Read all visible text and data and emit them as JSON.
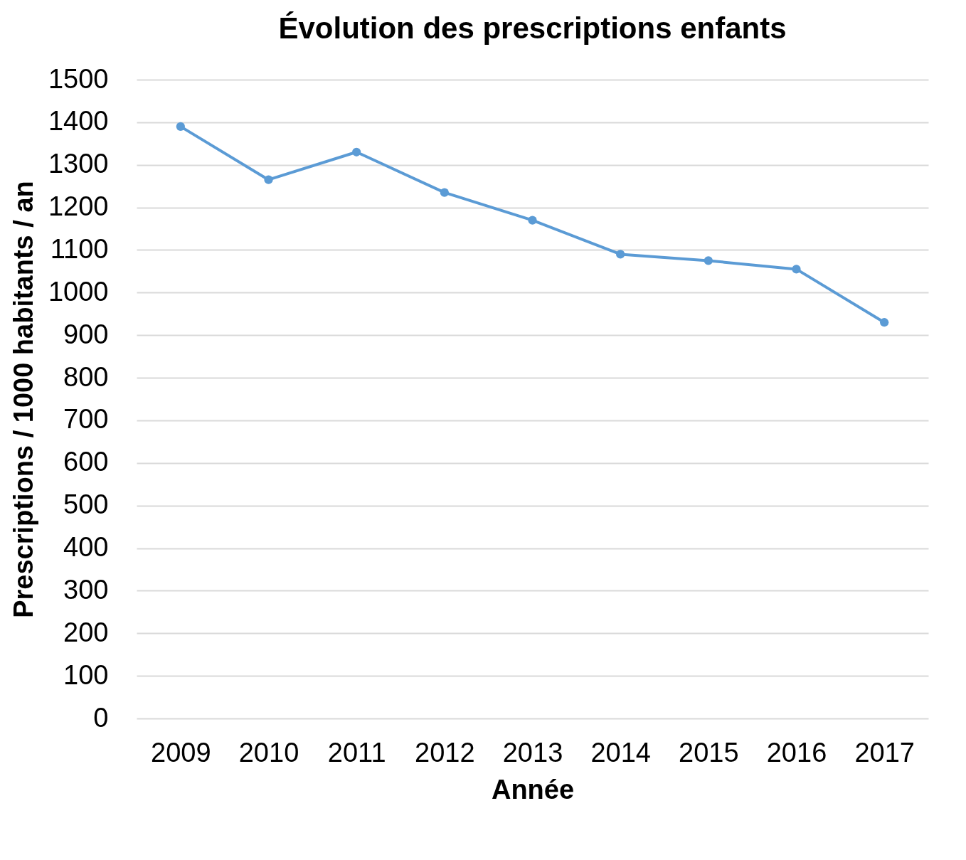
{
  "chart_data": {
    "type": "line",
    "title": "Évolution des prescriptions enfants",
    "xlabel": "Année",
    "ylabel": "Prescriptions / 1000 habitants / an",
    "categories": [
      "2009",
      "2010",
      "2011",
      "2012",
      "2013",
      "2014",
      "2015",
      "2016",
      "2017"
    ],
    "series": [
      {
        "color": "#5b9bd5",
        "values": [
          1390,
          1265,
          1330,
          1235,
          1170,
          1090,
          1075,
          1055,
          930
        ]
      }
    ],
    "ylim": [
      0,
      1500
    ],
    "yticks": [
      0,
      100,
      200,
      300,
      400,
      500,
      600,
      700,
      800,
      900,
      1000,
      1100,
      1200,
      1300,
      1400,
      1500
    ],
    "grid": "y",
    "marker": "circle",
    "line_style": "solid"
  }
}
